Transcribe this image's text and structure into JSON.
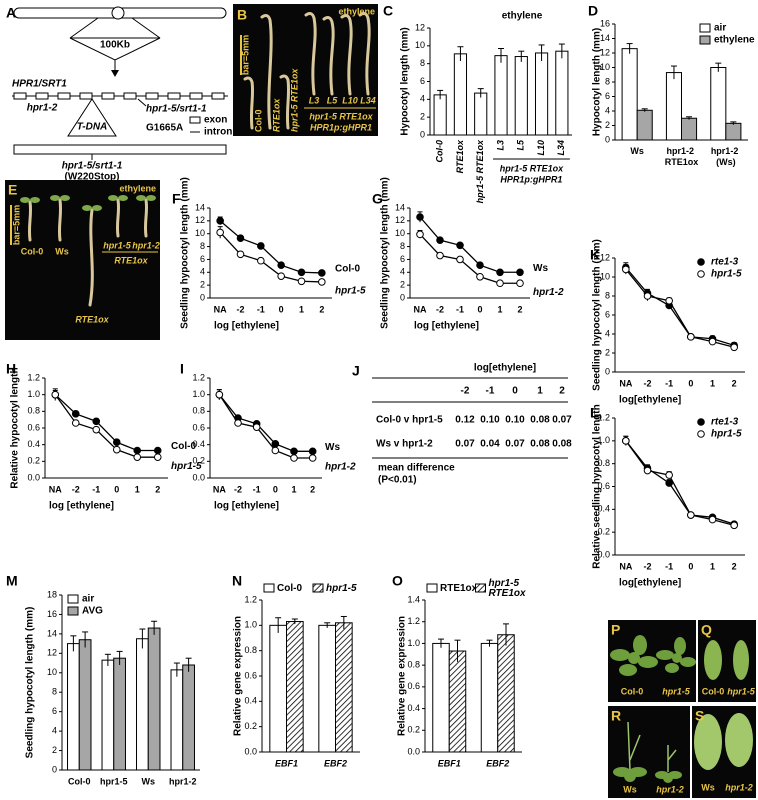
{
  "panels": {
    "A": {
      "label": "A",
      "chromosome_scale": "100Kb",
      "gene": "HPR1/SRT1",
      "allele_1": "hpr1-2",
      "allele_2": "hpr1-5/srt1-1",
      "mutation": "G1665A",
      "key": [
        "exon",
        "intron"
      ],
      "insertion": "T-DNA",
      "protein_allele": "hpr1-5/srt1-1",
      "protein_change": "(W220Stop)"
    },
    "B": {
      "label": "B",
      "treatment": "ethylene",
      "scale_bar": "bar=5mm",
      "genotypes": [
        "Col-0",
        "RTE1ox",
        "hpr1-5 RTE1ox",
        "L3",
        "L5",
        "L10",
        "L34"
      ],
      "group_label": [
        "hpr1-5 RTE1ox",
        "HPR1p:gHPR1"
      ]
    },
    "E": {
      "label": "E",
      "treatment": "ethylene",
      "scale_bar": "bar=5mm",
      "genotypes": [
        "Col-0",
        "Ws",
        "hpr1-5",
        "hpr1-2"
      ],
      "transgene_labels": [
        "RTE1ox",
        "RTE1ox"
      ]
    },
    "J": {
      "label": "J",
      "header": "log[ethylene]",
      "columns": [
        "-2",
        "-1",
        "0",
        "1",
        "2"
      ],
      "rows": [
        {
          "label": "Col-0 v hpr1-5",
          "values": [
            "0.12",
            "0.10",
            "0.10",
            "0.08",
            "0.07"
          ]
        },
        {
          "label": "Ws v hpr1-2",
          "values": [
            "0.07",
            "0.04",
            "0.07",
            "0.08",
            "0.08"
          ]
        }
      ],
      "footer": [
        "mean difference",
        "(P<0.01)"
      ]
    },
    "P": {
      "label": "P",
      "genotypes": [
        "Col-0",
        "hpr1-5"
      ]
    },
    "Q": {
      "label": "Q",
      "genotypes": [
        "Col-0",
        "hpr1-5"
      ]
    },
    "R": {
      "label": "R",
      "genotypes": [
        "Ws",
        "hpr1-2"
      ]
    },
    "S": {
      "label": "S",
      "genotypes": [
        "Ws",
        "hpr1-2"
      ]
    }
  },
  "chart_data": [
    {
      "panel": "C",
      "type": "bar",
      "title": "ethylene",
      "ylabel": "Hypocotyl length (mm)",
      "categories": [
        "Col-0",
        "RTE1ox",
        "hpr1-5 RTE1ox",
        "L3",
        "L5",
        "L10",
        "L34"
      ],
      "values": [
        4.5,
        9.1,
        4.7,
        8.9,
        8.8,
        9.2,
        9.4
      ],
      "errors": [
        0.5,
        0.8,
        0.5,
        0.8,
        0.6,
        0.9,
        0.8
      ],
      "color": "#ffffff",
      "group_label": [
        "hpr1-5 RTE1ox",
        "HPR1p:gHPR1"
      ],
      "ylim": [
        0,
        12
      ],
      "yticks": [
        0,
        2,
        4,
        6,
        8,
        10,
        12
      ]
    },
    {
      "panel": "D",
      "type": "bar",
      "ylabel": "Hypocotyl length (mm)",
      "legend": "top-right",
      "categories": [
        "Ws",
        "hpr1-2 RTE1ox",
        "hpr1-2 (Ws)"
      ],
      "series": [
        {
          "name": "air",
          "color": "#ffffff",
          "values": [
            12.6,
            9.3,
            10.0
          ],
          "errors": [
            0.7,
            0.9,
            0.6
          ]
        },
        {
          "name": "ethylene",
          "color": "#a6a6a6",
          "values": [
            4.1,
            3.0,
            2.3
          ],
          "errors": [
            0.2,
            0.2,
            0.2
          ]
        }
      ],
      "ylim": [
        0,
        16
      ],
      "yticks": [
        0,
        2,
        4,
        6,
        8,
        10,
        12,
        14,
        16
      ]
    },
    {
      "panel": "F",
      "type": "line",
      "ylabel": "Seedling hypocotyl length (mm)",
      "xlabel": "log [ethylene]",
      "legend": "inline",
      "categories": [
        "NA",
        "-2",
        "-1",
        "0",
        "1",
        "2"
      ],
      "series": [
        {
          "name": "Col-0",
          "color": "#000000",
          "values": [
            12,
            9.3,
            8.1,
            5.1,
            4,
            3.9
          ],
          "errors": [
            0.6,
            0.4,
            0.4,
            0.3,
            0.3,
            0.3
          ]
        },
        {
          "name": "hpr1-5",
          "color": "#ffffff",
          "values": [
            10.2,
            6.8,
            5.8,
            3.4,
            2.6,
            2.5
          ],
          "errors": [
            0.9,
            0.4,
            0.3,
            0.3,
            0.3,
            0.3
          ]
        }
      ],
      "ylim": [
        0,
        14
      ],
      "yticks": [
        0,
        2,
        4,
        6,
        8,
        10,
        12,
        14
      ]
    },
    {
      "panel": "G",
      "type": "line",
      "ylabel": "Seedling hypocotyl length (mm)",
      "xlabel": "log [ethylene]",
      "legend": "inline",
      "categories": [
        "NA",
        "-2",
        "-1",
        "0",
        "1",
        "2"
      ],
      "series": [
        {
          "name": "Ws",
          "color": "#000000",
          "values": [
            12.6,
            9,
            8.2,
            5.1,
            4,
            4
          ],
          "errors": [
            0.8,
            0.3,
            0.3,
            0.3,
            0.3,
            0.3
          ]
        },
        {
          "name": "hpr1-2",
          "color": "#ffffff",
          "values": [
            9.9,
            6.6,
            6,
            3.3,
            2.3,
            2.3
          ],
          "errors": [
            0.6,
            0.3,
            0.3,
            0.3,
            0.2,
            0.2
          ]
        }
      ],
      "ylim": [
        0,
        14
      ],
      "yticks": [
        0,
        2,
        4,
        6,
        8,
        10,
        12,
        14
      ]
    },
    {
      "panel": "H",
      "type": "line",
      "ylabel": "Relative hypocotyl length",
      "xlabel": "log [ethylene]",
      "legend": "inline",
      "categories": [
        "NA",
        "-2",
        "-1",
        "0",
        "1",
        "2"
      ],
      "series": [
        {
          "name": "Col-0",
          "color": "#000000",
          "values": [
            1,
            0.77,
            0.68,
            0.43,
            0.33,
            0.33
          ],
          "errors": [
            0.05,
            0.03,
            0.03,
            0.02,
            0.02,
            0.02
          ]
        },
        {
          "name": "hpr1-5",
          "color": "#ffffff",
          "values": [
            1,
            0.66,
            0.58,
            0.34,
            0.25,
            0.25
          ],
          "errors": [
            0.07,
            0.03,
            0.03,
            0.02,
            0.02,
            0.02
          ]
        }
      ],
      "ylim": [
        0,
        1.2
      ],
      "yticks": [
        {
          "value": 0,
          "label": "0.0"
        },
        0.2,
        0.4,
        0.6,
        0.8,
        {
          "value": 1,
          "label": "1.0"
        },
        1.2
      ]
    },
    {
      "panel": "I",
      "type": "line",
      "xlabel": "log [ethylene]",
      "legend": "inline",
      "categories": [
        "NA",
        "-2",
        "-1",
        "0",
        "1",
        "2"
      ],
      "series": [
        {
          "name": "Ws",
          "color": "#000000",
          "values": [
            1,
            0.72,
            0.65,
            0.41,
            0.32,
            0.32
          ],
          "errors": [
            0.06,
            0.02,
            0.02,
            0.02,
            0.02,
            0.02
          ]
        },
        {
          "name": "hpr1-2",
          "color": "#ffffff",
          "values": [
            1,
            0.66,
            0.61,
            0.33,
            0.24,
            0.24
          ],
          "errors": [
            0.06,
            0.02,
            0.02,
            0.02,
            0.02,
            0.02
          ]
        }
      ],
      "ylim": [
        0,
        1.2
      ],
      "yticks": [
        {
          "value": 0,
          "label": "0.0"
        },
        0.2,
        0.4,
        0.6,
        0.8,
        {
          "value": 1,
          "label": "1.0"
        },
        1.2
      ]
    },
    {
      "panel": "K",
      "type": "line",
      "ylabel": "Seedling hypocotyl length (mm)",
      "xlabel": "log[ethylene]",
      "legend": "top-right",
      "categories": [
        "NA",
        "-2",
        "-1",
        "0",
        "1",
        "2"
      ],
      "series": [
        {
          "name": "rte1-3",
          "color": "#000000",
          "values": [
            11,
            8.3,
            7,
            3.7,
            3.5,
            2.8
          ],
          "errors": [
            0.5,
            0.4,
            0.3,
            0.2,
            0.3,
            0.3
          ]
        },
        {
          "name": "hpr1-5",
          "color": "#ffffff",
          "values": [
            10.8,
            8,
            7.5,
            3.7,
            3.2,
            2.6
          ],
          "errors": [
            0.5,
            0.5,
            0.3,
            0.2,
            0.3,
            0.3
          ]
        }
      ],
      "ylim": [
        0,
        12
      ],
      "yticks": [
        0,
        2,
        4,
        6,
        8,
        10,
        12
      ]
    },
    {
      "panel": "L",
      "type": "line",
      "ylabel": "Relative seedling hypocotyl length",
      "xlabel": "log[ethylene]",
      "legend": "top-right",
      "categories": [
        "NA",
        "-2",
        "-1",
        "0",
        "1",
        "2"
      ],
      "series": [
        {
          "name": "rte1-3",
          "color": "#000000",
          "values": [
            1,
            0.76,
            0.63,
            0.35,
            0.33,
            0.27
          ],
          "errors": [
            0.04,
            0.03,
            0.03,
            0.02,
            0.02,
            0.02
          ]
        },
        {
          "name": "hpr1-5",
          "color": "#ffffff",
          "values": [
            1,
            0.74,
            0.7,
            0.35,
            0.31,
            0.26
          ],
          "errors": [
            0.04,
            0.03,
            0.03,
            0.02,
            0.02,
            0.02
          ]
        }
      ],
      "ylim": [
        0,
        1.2
      ],
      "yticks": [
        {
          "value": 0,
          "label": "0.0"
        },
        0.2,
        0.4,
        0.6,
        0.8,
        {
          "value": 1,
          "label": "1.0"
        },
        1.2
      ]
    },
    {
      "panel": "M",
      "type": "bar",
      "ylabel": "Seedling hypocotyl length (mm)",
      "legend": "top-left",
      "categories": [
        "Col-0",
        "hpr1-5",
        "Ws",
        "hpr1-2"
      ],
      "series": [
        {
          "name": "air",
          "color": "#ffffff",
          "values": [
            13.0,
            11.3,
            13.5,
            10.3
          ],
          "errors": [
            0.8,
            0.6,
            1.0,
            0.7
          ]
        },
        {
          "name": "AVG",
          "color": "#a6a6a6",
          "values": [
            13.4,
            11.5,
            14.6,
            10.8
          ],
          "errors": [
            0.8,
            0.7,
            0.7,
            0.7
          ]
        }
      ],
      "ylim": [
        0,
        18
      ],
      "yticks": [
        0,
        2,
        4,
        6,
        8,
        10,
        12,
        14,
        16,
        18
      ]
    },
    {
      "panel": "N",
      "type": "bar",
      "ylabel": "Relative gene expression",
      "legend": "top",
      "categories": [
        "EBF1",
        "EBF2"
      ],
      "series": [
        {
          "name": "Col-0",
          "color": "#ffffff",
          "values": [
            1.0,
            1.0
          ],
          "errors": [
            0.06,
            0.02
          ]
        },
        {
          "name": "hpr1-5",
          "color": "#ffffff",
          "hatch": true,
          "values": [
            1.03,
            1.02
          ],
          "errors": [
            0.02,
            0.05
          ]
        }
      ],
      "ylim": [
        0,
        1.2
      ],
      "yticks": [
        {
          "value": 0,
          "label": "0.0"
        },
        0.2,
        0.4,
        0.6,
        0.8,
        {
          "value": 1,
          "label": "1.0"
        },
        1.2
      ]
    },
    {
      "panel": "O",
      "type": "bar",
      "ylabel": "Relative gene expression",
      "legend": "top",
      "categories": [
        "EBF1",
        "EBF2"
      ],
      "series": [
        {
          "name": "RTE1ox",
          "color": "#ffffff",
          "values": [
            1.0,
            1.0
          ],
          "errors": [
            0.04,
            0.03
          ]
        },
        {
          "name": "hpr1-5 RTE1ox",
          "color": "#ffffff",
          "hatch": true,
          "values": [
            0.93,
            1.08
          ],
          "errors": [
            0.1,
            0.1
          ]
        }
      ],
      "ylim": [
        0,
        1.4
      ],
      "yticks": [
        {
          "value": 0,
          "label": "0.0"
        },
        0.2,
        0.4,
        0.6,
        0.8,
        {
          "value": 1,
          "label": "1.0"
        },
        1.2,
        1.4
      ]
    }
  ]
}
